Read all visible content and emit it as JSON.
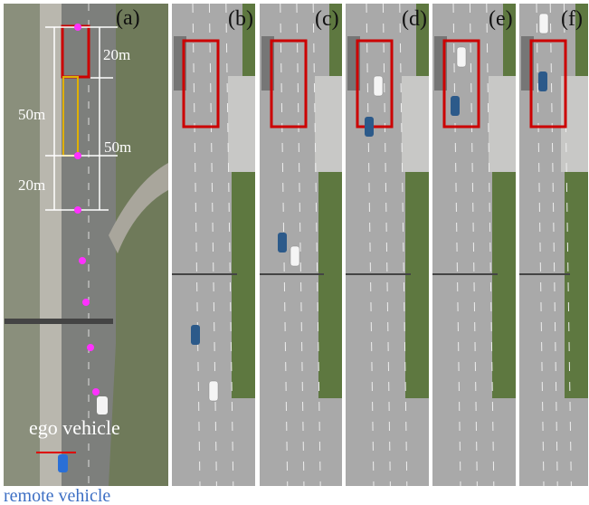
{
  "panels": [
    {
      "label": "(a)"
    },
    {
      "label": "(b)"
    },
    {
      "label": "(c)"
    },
    {
      "label": "(d)"
    },
    {
      "label": "(e)"
    },
    {
      "label": "(f)"
    }
  ],
  "annotations": {
    "top_length": "20m",
    "left_length": "50m",
    "right_length": "50m",
    "lower_length": "20m",
    "ego": "ego vehicle",
    "remote": "remote vehicle"
  }
}
